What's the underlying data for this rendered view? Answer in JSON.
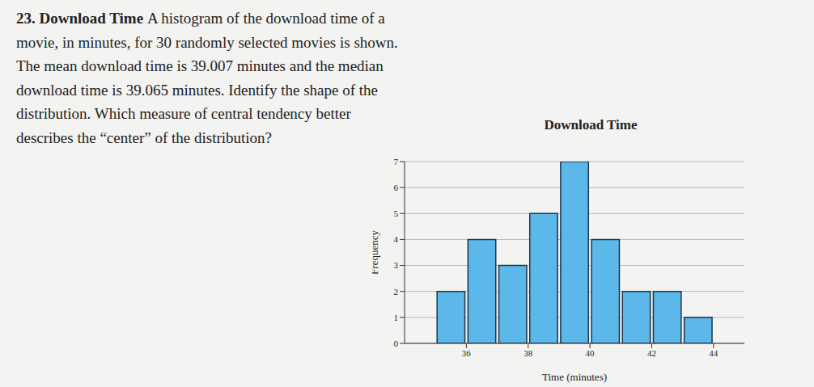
{
  "question": {
    "number": "23.",
    "title": "Download Time",
    "lines": [
      "A histogram of the download time of a",
      "movie, in minutes, for 30 randomly selected movies is shown.",
      "The mean download time is 39.007 minutes and the median",
      "download time is 39.065 minutes. Identify the shape of the",
      "distribution. Which measure of central tendency better",
      "describes the “center” of the distribution?"
    ]
  },
  "chart_data": {
    "type": "histogram",
    "title": "Download Time",
    "x_label": "Time (minutes)",
    "y_label": "Frequency",
    "bins": [
      35,
      36,
      37,
      38,
      39,
      40,
      41,
      42,
      43,
      44
    ],
    "counts": [
      2,
      4,
      3,
      5,
      7,
      4,
      2,
      2,
      1
    ],
    "color": "#5bb8e8",
    "xlim": [
      34,
      45
    ],
    "xticks": [
      36,
      38,
      40,
      42,
      44
    ],
    "ylim": [
      0,
      7
    ],
    "yticks": [
      0,
      1,
      2,
      3,
      4,
      5,
      6,
      7
    ],
    "grid": true
  }
}
